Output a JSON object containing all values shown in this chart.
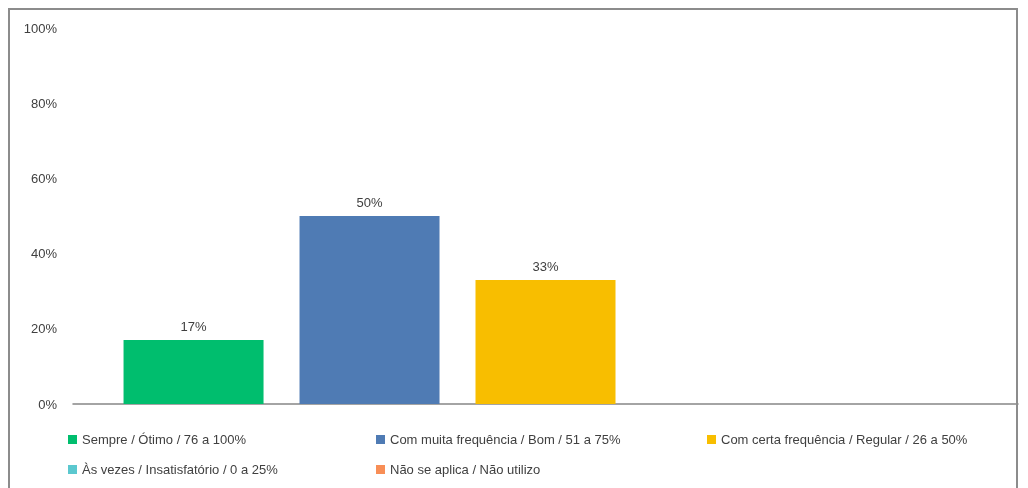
{
  "chart_data": {
    "type": "bar",
    "categories": [
      null
    ],
    "series": [
      {
        "name": "Sempre / Ótimo / 76 a 100%",
        "color": "#00be6e",
        "values": [
          17
        ],
        "value_labels": [
          "17%"
        ]
      },
      {
        "name": "Com muita frequência / Bom / 51 a 75%",
        "color": "#4f7bb4",
        "values": [
          50
        ],
        "value_labels": [
          "50%"
        ]
      },
      {
        "name": "Com certa frequência / Regular / 26 a 50%",
        "color": "#f8be00",
        "values": [
          33
        ],
        "value_labels": [
          "33%"
        ]
      },
      {
        "name": "Às vezes / Insatisfatório / 0 a 25%",
        "color": "#5bc8cf",
        "values": [
          null
        ]
      },
      {
        "name": "Não se aplica / Não utilizo",
        "color": "#f88e56",
        "values": [
          null
        ]
      }
    ],
    "ylim": [
      0,
      100
    ],
    "yticks": [
      {
        "value": 0,
        "label": "0%"
      },
      {
        "value": 20,
        "label": "20%"
      },
      {
        "value": 40,
        "label": "40%"
      },
      {
        "value": 60,
        "label": "60%"
      },
      {
        "value": 80,
        "label": "80%"
      },
      {
        "value": 100,
        "label": "100%"
      }
    ],
    "legend": "bottom"
  }
}
